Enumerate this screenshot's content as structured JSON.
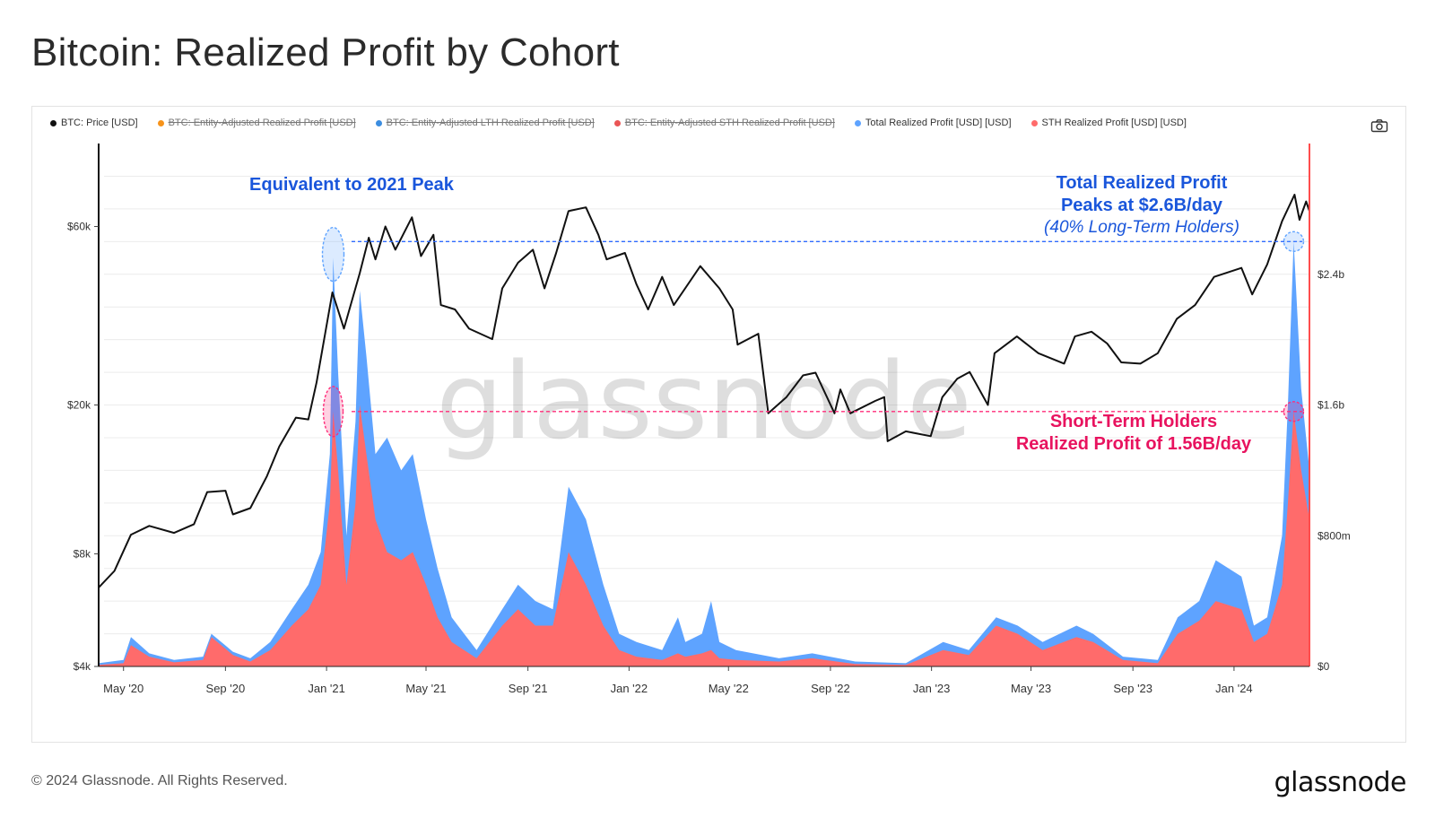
{
  "title": "Bitcoin: Realized Profit by Cohort",
  "legend": [
    {
      "label": "BTC: Price [USD]",
      "color": "#111111",
      "disabled": false
    },
    {
      "label": "BTC: Entity-Adjusted Realized Profit [USD]",
      "color": "#f7931a",
      "disabled": true
    },
    {
      "label": "BTC: Entity-Adjusted LTH Realized Profit [USD]",
      "color": "#3b8de0",
      "disabled": true
    },
    {
      "label": "BTC: Entity-Adjusted STH Realized Profit [USD]",
      "color": "#ea5555",
      "disabled": true
    },
    {
      "label": "Total Realized Profit [USD] [USD]",
      "color": "#5ea3ff",
      "disabled": false
    },
    {
      "label": "STH Realized Profit [USD] [USD]",
      "color": "#ff6b6b",
      "disabled": false
    }
  ],
  "icons": {
    "camera": "camera-icon"
  },
  "watermark": "glassnode",
  "annotations": {
    "peak_2021": "Equivalent to 2021 Peak",
    "total_line1": "Total Realized Profit",
    "total_line2": "Peaks at $2.6B/day",
    "total_line3": "(40% Long-Term Holders)",
    "sth_line1": "Short-Term Holders",
    "sth_line2": "Realized Profit of 1.56B/day"
  },
  "footer": {
    "copyright": "© 2024 Glassnode. All Rights Reserved.",
    "logo": "glassnode"
  },
  "chart_data": {
    "type": "area",
    "x_ticks": [
      "May '20",
      "Sep '20",
      "Jan '21",
      "May '21",
      "Sep '21",
      "Jan '22",
      "May '22",
      "Sep '22",
      "Jan '23",
      "May '23",
      "Sep '23",
      "Jan '24"
    ],
    "x_tick_dates": [
      "2020-05-01",
      "2020-09-01",
      "2021-01-01",
      "2021-05-01",
      "2021-09-01",
      "2022-01-01",
      "2022-05-01",
      "2022-09-01",
      "2023-01-01",
      "2023-05-01",
      "2023-09-01",
      "2024-01-01"
    ],
    "x_range": [
      "2020-04-01",
      "2024-04-01"
    ],
    "y_left": {
      "scale": "log",
      "ticks": [
        4000,
        8000,
        20000,
        60000
      ],
      "tick_labels": [
        "$4k",
        "$8k",
        "$20k",
        "$60k"
      ],
      "range": [
        4000,
        100000
      ]
    },
    "y_right": {
      "scale": "linear",
      "ticks": [
        0,
        800000000,
        1600000000,
        2400000000
      ],
      "tick_labels": [
        "$0",
        "$800m",
        "$1.6b",
        "$2.4b"
      ],
      "range": [
        0,
        3200000000
      ]
    },
    "series": [
      {
        "name": "BTC: Price [USD]",
        "axis": "left",
        "color": "#111111",
        "points": [
          [
            "2020-04-01",
            6500
          ],
          [
            "2020-04-20",
            7200
          ],
          [
            "2020-05-10",
            9000
          ],
          [
            "2020-06-01",
            9500
          ],
          [
            "2020-07-01",
            9100
          ],
          [
            "2020-07-25",
            9600
          ],
          [
            "2020-08-10",
            11700
          ],
          [
            "2020-09-01",
            11800
          ],
          [
            "2020-09-10",
            10200
          ],
          [
            "2020-10-01",
            10600
          ],
          [
            "2020-10-21",
            12900
          ],
          [
            "2020-11-05",
            15500
          ],
          [
            "2020-11-25",
            18500
          ],
          [
            "2020-12-10",
            18300
          ],
          [
            "2020-12-20",
            23000
          ],
          [
            "2021-01-08",
            40000
          ],
          [
            "2021-01-22",
            32000
          ],
          [
            "2021-02-10",
            45000
          ],
          [
            "2021-02-21",
            56000
          ],
          [
            "2021-03-01",
            49000
          ],
          [
            "2021-03-13",
            60000
          ],
          [
            "2021-03-25",
            52000
          ],
          [
            "2021-04-14",
            63500
          ],
          [
            "2021-04-25",
            50000
          ],
          [
            "2021-05-10",
            57000
          ],
          [
            "2021-05-19",
            37000
          ],
          [
            "2021-06-05",
            36000
          ],
          [
            "2021-06-22",
            32000
          ],
          [
            "2021-07-20",
            30000
          ],
          [
            "2021-08-01",
            41000
          ],
          [
            "2021-08-20",
            48000
          ],
          [
            "2021-09-07",
            52000
          ],
          [
            "2021-09-21",
            41000
          ],
          [
            "2021-10-05",
            51000
          ],
          [
            "2021-10-20",
            66000
          ],
          [
            "2021-11-10",
            67500
          ],
          [
            "2021-11-25",
            57000
          ],
          [
            "2021-12-05",
            49000
          ],
          [
            "2021-12-27",
            51000
          ],
          [
            "2022-01-10",
            42000
          ],
          [
            "2022-01-24",
            36000
          ],
          [
            "2022-02-10",
            44000
          ],
          [
            "2022-02-24",
            37000
          ],
          [
            "2022-03-28",
            47000
          ],
          [
            "2022-04-20",
            41000
          ],
          [
            "2022-05-06",
            36000
          ],
          [
            "2022-05-12",
            29000
          ],
          [
            "2022-06-06",
            31000
          ],
          [
            "2022-06-18",
            19000
          ],
          [
            "2022-07-10",
            21000
          ],
          [
            "2022-07-30",
            24000
          ],
          [
            "2022-08-14",
            24400
          ],
          [
            "2022-09-06",
            19000
          ],
          [
            "2022-09-13",
            22000
          ],
          [
            "2022-09-25",
            19000
          ],
          [
            "2022-10-25",
            20500
          ],
          [
            "2022-11-05",
            21000
          ],
          [
            "2022-11-09",
            16000
          ],
          [
            "2022-12-01",
            17000
          ],
          [
            "2022-12-31",
            16500
          ],
          [
            "2023-01-14",
            21000
          ],
          [
            "2023-02-01",
            23500
          ],
          [
            "2023-02-16",
            24500
          ],
          [
            "2023-03-10",
            20000
          ],
          [
            "2023-03-18",
            27500
          ],
          [
            "2023-04-14",
            30500
          ],
          [
            "2023-05-10",
            27500
          ],
          [
            "2023-06-10",
            25800
          ],
          [
            "2023-06-23",
            30500
          ],
          [
            "2023-07-13",
            31400
          ],
          [
            "2023-08-01",
            29200
          ],
          [
            "2023-08-18",
            26000
          ],
          [
            "2023-09-10",
            25800
          ],
          [
            "2023-10-01",
            27500
          ],
          [
            "2023-10-24",
            34000
          ],
          [
            "2023-11-15",
            37000
          ],
          [
            "2023-12-08",
            44000
          ],
          [
            "2024-01-10",
            46500
          ],
          [
            "2024-01-23",
            39500
          ],
          [
            "2024-02-10",
            47500
          ],
          [
            "2024-02-28",
            62000
          ],
          [
            "2024-03-14",
            73000
          ],
          [
            "2024-03-20",
            62500
          ],
          [
            "2024-03-28",
            70000
          ],
          [
            "2024-04-01",
            66000
          ]
        ]
      },
      {
        "name": "Total Realized Profit [USD] [USD]",
        "axis": "right",
        "color": "#5ea3ff",
        "points": [
          [
            "2020-04-01",
            20000000
          ],
          [
            "2020-05-01",
            40000000
          ],
          [
            "2020-05-10",
            180000000
          ],
          [
            "2020-06-01",
            80000000
          ],
          [
            "2020-07-01",
            40000000
          ],
          [
            "2020-08-05",
            60000000
          ],
          [
            "2020-08-15",
            200000000
          ],
          [
            "2020-09-10",
            90000000
          ],
          [
            "2020-10-01",
            50000000
          ],
          [
            "2020-10-25",
            150000000
          ],
          [
            "2020-11-20",
            350000000
          ],
          [
            "2020-12-10",
            500000000
          ],
          [
            "2020-12-25",
            700000000
          ],
          [
            "2021-01-05",
            1300000000
          ],
          [
            "2021-01-09",
            2500000000
          ],
          [
            "2021-01-15",
            1800000000
          ],
          [
            "2021-01-25",
            800000000
          ],
          [
            "2021-02-05",
            1500000000
          ],
          [
            "2021-02-10",
            2300000000
          ],
          [
            "2021-02-18",
            1900000000
          ],
          [
            "2021-03-01",
            1300000000
          ],
          [
            "2021-03-15",
            1400000000
          ],
          [
            "2021-04-01",
            1200000000
          ],
          [
            "2021-04-15",
            1300000000
          ],
          [
            "2021-05-01",
            900000000
          ],
          [
            "2021-05-15",
            600000000
          ],
          [
            "2021-06-01",
            300000000
          ],
          [
            "2021-07-01",
            100000000
          ],
          [
            "2021-08-01",
            350000000
          ],
          [
            "2021-08-20",
            500000000
          ],
          [
            "2021-09-10",
            400000000
          ],
          [
            "2021-10-01",
            350000000
          ],
          [
            "2021-10-20",
            1100000000
          ],
          [
            "2021-11-10",
            900000000
          ],
          [
            "2021-12-01",
            500000000
          ],
          [
            "2021-12-20",
            200000000
          ],
          [
            "2022-01-10",
            150000000
          ],
          [
            "2022-02-10",
            100000000
          ],
          [
            "2022-03-01",
            300000000
          ],
          [
            "2022-03-10",
            150000000
          ],
          [
            "2022-03-30",
            200000000
          ],
          [
            "2022-04-10",
            400000000
          ],
          [
            "2022-04-20",
            150000000
          ],
          [
            "2022-05-10",
            100000000
          ],
          [
            "2022-07-01",
            50000000
          ],
          [
            "2022-08-10",
            80000000
          ],
          [
            "2022-10-01",
            30000000
          ],
          [
            "2022-12-01",
            20000000
          ],
          [
            "2023-01-15",
            150000000
          ],
          [
            "2023-02-15",
            100000000
          ],
          [
            "2023-03-20",
            300000000
          ],
          [
            "2023-04-15",
            250000000
          ],
          [
            "2023-05-15",
            150000000
          ],
          [
            "2023-06-25",
            250000000
          ],
          [
            "2023-07-15",
            200000000
          ],
          [
            "2023-08-20",
            60000000
          ],
          [
            "2023-10-01",
            40000000
          ],
          [
            "2023-10-25",
            300000000
          ],
          [
            "2023-11-20",
            400000000
          ],
          [
            "2023-12-10",
            650000000
          ],
          [
            "2024-01-10",
            550000000
          ],
          [
            "2024-01-25",
            250000000
          ],
          [
            "2024-02-10",
            300000000
          ],
          [
            "2024-02-28",
            800000000
          ],
          [
            "2024-03-06",
            1600000000
          ],
          [
            "2024-03-13",
            2600000000
          ],
          [
            "2024-03-22",
            1700000000
          ],
          [
            "2024-04-01",
            1200000000
          ]
        ]
      },
      {
        "name": "STH Realized Profit [USD] [USD]",
        "axis": "right",
        "color": "#ff6b6b",
        "points": [
          [
            "2020-04-01",
            10000000
          ],
          [
            "2020-05-01",
            20000000
          ],
          [
            "2020-05-10",
            130000000
          ],
          [
            "2020-06-01",
            60000000
          ],
          [
            "2020-07-01",
            25000000
          ],
          [
            "2020-08-05",
            40000000
          ],
          [
            "2020-08-15",
            180000000
          ],
          [
            "2020-09-10",
            70000000
          ],
          [
            "2020-10-01",
            30000000
          ],
          [
            "2020-10-25",
            100000000
          ],
          [
            "2020-11-20",
            250000000
          ],
          [
            "2020-12-10",
            350000000
          ],
          [
            "2020-12-25",
            500000000
          ],
          [
            "2021-01-05",
            1000000000
          ],
          [
            "2021-01-09",
            1560000000
          ],
          [
            "2021-01-15",
            1200000000
          ],
          [
            "2021-01-25",
            500000000
          ],
          [
            "2021-02-05",
            1000000000
          ],
          [
            "2021-02-10",
            1600000000
          ],
          [
            "2021-02-18",
            1300000000
          ],
          [
            "2021-03-01",
            900000000
          ],
          [
            "2021-03-15",
            700000000
          ],
          [
            "2021-04-01",
            650000000
          ],
          [
            "2021-04-15",
            700000000
          ],
          [
            "2021-05-01",
            500000000
          ],
          [
            "2021-05-15",
            300000000
          ],
          [
            "2021-06-01",
            150000000
          ],
          [
            "2021-07-01",
            50000000
          ],
          [
            "2021-08-01",
            250000000
          ],
          [
            "2021-08-20",
            350000000
          ],
          [
            "2021-09-10",
            250000000
          ],
          [
            "2021-10-01",
            250000000
          ],
          [
            "2021-10-20",
            700000000
          ],
          [
            "2021-11-10",
            500000000
          ],
          [
            "2021-12-01",
            250000000
          ],
          [
            "2021-12-20",
            100000000
          ],
          [
            "2022-01-10",
            60000000
          ],
          [
            "2022-02-10",
            40000000
          ],
          [
            "2022-03-01",
            80000000
          ],
          [
            "2022-03-10",
            60000000
          ],
          [
            "2022-03-30",
            80000000
          ],
          [
            "2022-04-10",
            100000000
          ],
          [
            "2022-04-20",
            50000000
          ],
          [
            "2022-05-10",
            40000000
          ],
          [
            "2022-07-01",
            30000000
          ],
          [
            "2022-08-10",
            50000000
          ],
          [
            "2022-10-01",
            15000000
          ],
          [
            "2022-12-01",
            10000000
          ],
          [
            "2023-01-15",
            100000000
          ],
          [
            "2023-02-15",
            70000000
          ],
          [
            "2023-03-20",
            250000000
          ],
          [
            "2023-04-15",
            200000000
          ],
          [
            "2023-05-15",
            100000000
          ],
          [
            "2023-06-25",
            180000000
          ],
          [
            "2023-07-15",
            150000000
          ],
          [
            "2023-08-20",
            40000000
          ],
          [
            "2023-10-01",
            20000000
          ],
          [
            "2023-10-25",
            200000000
          ],
          [
            "2023-11-20",
            280000000
          ],
          [
            "2023-12-10",
            400000000
          ],
          [
            "2024-01-10",
            350000000
          ],
          [
            "2024-01-25",
            150000000
          ],
          [
            "2024-02-10",
            200000000
          ],
          [
            "2024-02-28",
            500000000
          ],
          [
            "2024-03-06",
            1000000000
          ],
          [
            "2024-03-13",
            1560000000
          ],
          [
            "2024-03-22",
            1200000000
          ],
          [
            "2024-04-01",
            900000000
          ]
        ]
      }
    ],
    "reference_lines": [
      {
        "axis": "right",
        "value": 2600000000,
        "color": "#2f6bff",
        "style": "dashed"
      },
      {
        "axis": "right",
        "value": 1560000000,
        "color": "#ff2d7a",
        "style": "dashed"
      }
    ],
    "highlights": [
      {
        "date": "2021-01-09",
        "axis": "right",
        "value": 2500000000,
        "color": "#5ea3ff"
      },
      {
        "date": "2021-01-09",
        "axis": "right",
        "value": 1560000000,
        "color": "#ff2d7a"
      },
      {
        "date": "2024-03-13",
        "axis": "right",
        "value": 2600000000,
        "color": "#5ea3ff"
      },
      {
        "date": "2024-03-13",
        "axis": "right",
        "value": 1560000000,
        "color": "#ff2d7a"
      }
    ],
    "grid": true,
    "legend_position": "top-left"
  }
}
